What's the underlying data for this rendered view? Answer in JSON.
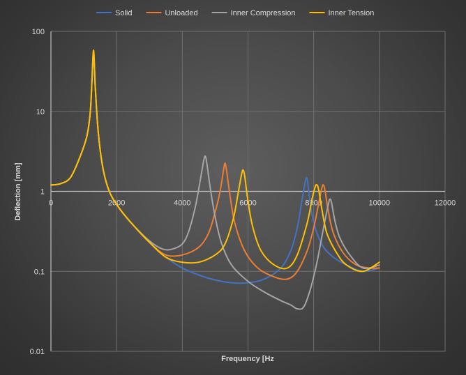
{
  "chart_data": {
    "type": "line",
    "xlabel": "Frequency [Hz",
    "ylabel": "Deflection [mm]",
    "xlim": [
      0,
      12000
    ],
    "ylim": [
      0.01,
      100
    ],
    "yscale": "log",
    "x_ticks": [
      "0",
      "2000",
      "4000",
      "6000",
      "8000",
      "10000",
      "12000"
    ],
    "x_tick_values": [
      0,
      2000,
      4000,
      6000,
      8000,
      10000,
      12000
    ],
    "y_ticks": [
      "0.01",
      "0.1",
      "1",
      "10",
      "100"
    ],
    "y_tick_values": [
      0.01,
      0.1,
      1,
      10,
      100
    ],
    "grid": true,
    "legend_position": "top",
    "series": [
      {
        "name": "Solid",
        "color": "#4472c4",
        "x": [
          0,
          300,
          600,
          900,
          1100,
          1200,
          1250,
          1300,
          1350,
          1450,
          1600,
          1800,
          2100,
          2500,
          3000,
          3500,
          4000,
          4500,
          5000,
          5500,
          6000,
          6500,
          7000,
          7300,
          7500,
          7650,
          7750,
          7800,
          7850,
          7950,
          8100,
          8300,
          8600,
          9000,
          9500,
          10000
        ],
        "y": [
          1.2,
          1.25,
          1.5,
          2.8,
          5.0,
          10.0,
          25.0,
          55.0,
          20.0,
          5.0,
          1.8,
          0.95,
          0.6,
          0.38,
          0.23,
          0.15,
          0.11,
          0.09,
          0.078,
          0.072,
          0.072,
          0.08,
          0.11,
          0.18,
          0.35,
          0.8,
          1.35,
          1.45,
          1.0,
          0.5,
          0.3,
          0.2,
          0.15,
          0.12,
          0.1,
          0.11
        ]
      },
      {
        "name": "Unloaded",
        "color": "#ed7d31",
        "x": [
          0,
          300,
          600,
          900,
          1100,
          1200,
          1250,
          1300,
          1350,
          1450,
          1600,
          1800,
          2100,
          2500,
          3000,
          3500,
          4000,
          4500,
          4800,
          5000,
          5150,
          5250,
          5300,
          5350,
          5450,
          5600,
          5900,
          6300,
          6800,
          7200,
          7500,
          7800,
          8000,
          8150,
          8250,
          8300,
          8350,
          8450,
          8600,
          8900,
          9300,
          9700,
          10000
        ],
        "y": [
          1.2,
          1.25,
          1.5,
          2.8,
          5.0,
          10.0,
          25.0,
          55.0,
          20.0,
          5.0,
          1.8,
          0.95,
          0.6,
          0.38,
          0.23,
          0.16,
          0.16,
          0.2,
          0.3,
          0.55,
          1.0,
          1.8,
          2.25,
          1.8,
          0.9,
          0.4,
          0.18,
          0.11,
          0.085,
          0.08,
          0.1,
          0.18,
          0.35,
          0.7,
          1.1,
          1.2,
          1.0,
          0.55,
          0.3,
          0.17,
          0.12,
          0.11,
          0.11
        ]
      },
      {
        "name": "Inner Compression",
        "color": "#a5a5a5",
        "x": [
          0,
          300,
          600,
          900,
          1100,
          1200,
          1250,
          1300,
          1350,
          1450,
          1600,
          1800,
          2100,
          2500,
          3000,
          3400,
          3700,
          4000,
          4200,
          4400,
          4550,
          4650,
          4700,
          4750,
          4850,
          5000,
          5200,
          5500,
          6000,
          6500,
          7000,
          7300,
          7500,
          7700,
          7900,
          8100,
          8300,
          8450,
          8500,
          8550,
          8650,
          8800,
          9100,
          9500,
          10000
        ],
        "y": [
          1.2,
          1.25,
          1.5,
          2.8,
          5.0,
          10.0,
          25.0,
          55.0,
          20.0,
          5.0,
          1.8,
          0.95,
          0.6,
          0.38,
          0.24,
          0.19,
          0.19,
          0.22,
          0.32,
          0.65,
          1.4,
          2.4,
          2.75,
          2.2,
          1.1,
          0.48,
          0.22,
          0.12,
          0.075,
          0.055,
          0.043,
          0.038,
          0.034,
          0.036,
          0.06,
          0.13,
          0.35,
          0.7,
          0.8,
          0.7,
          0.42,
          0.26,
          0.16,
          0.11,
          0.12
        ]
      },
      {
        "name": "Inner Tension",
        "color": "#ffc000",
        "x": [
          0,
          300,
          600,
          900,
          1100,
          1200,
          1250,
          1300,
          1350,
          1450,
          1600,
          1800,
          2100,
          2500,
          3000,
          3500,
          4000,
          4500,
          5000,
          5300,
          5550,
          5700,
          5800,
          5850,
          5900,
          6000,
          6150,
          6400,
          6800,
          7200,
          7500,
          7800,
          7950,
          8050,
          8100,
          8150,
          8250,
          8400,
          8700,
          9000,
          9500,
          10000
        ],
        "y": [
          1.2,
          1.25,
          1.5,
          2.8,
          5.0,
          10.0,
          25.0,
          58.0,
          20.0,
          5.0,
          1.8,
          0.95,
          0.6,
          0.38,
          0.23,
          0.15,
          0.13,
          0.13,
          0.16,
          0.22,
          0.45,
          0.95,
          1.6,
          1.85,
          1.55,
          0.75,
          0.35,
          0.18,
          0.12,
          0.11,
          0.16,
          0.4,
          0.8,
          1.15,
          1.2,
          1.05,
          0.6,
          0.3,
          0.17,
          0.12,
          0.1,
          0.13
        ]
      }
    ]
  }
}
